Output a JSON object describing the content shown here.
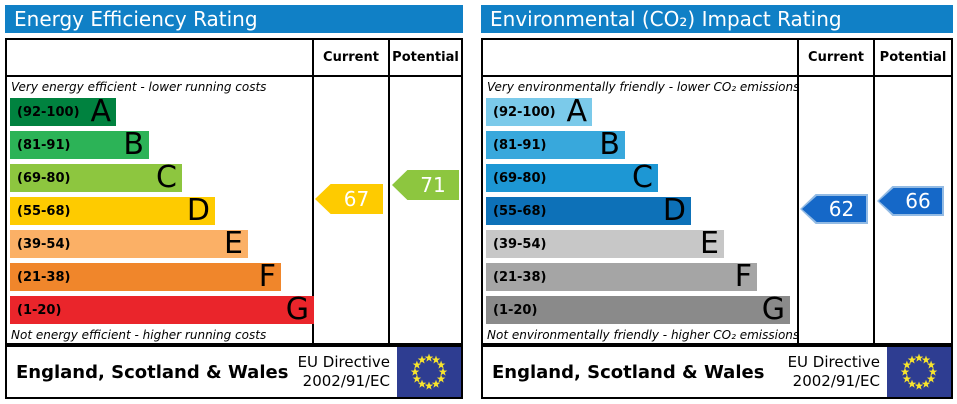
{
  "colors": {
    "header_bar": "#1080c6",
    "flag_background": "#2e3d91",
    "flag_stars": "#f8e42c",
    "arrow_text": "#ffffff"
  },
  "panels": [
    {
      "title": "Energy Efficiency Rating",
      "columns": {
        "current": "Current",
        "potential": "Potential"
      },
      "top_caption": "Very energy efficient - lower running costs",
      "bottom_caption": "Not energy efficient - higher running costs",
      "bands": [
        {
          "letter": "A",
          "range": "(92-100)",
          "min": 92,
          "max": 100,
          "color": "#00823f"
        },
        {
          "letter": "B",
          "range": "(81-91)",
          "min": 81,
          "max": 91,
          "color": "#2cb357"
        },
        {
          "letter": "C",
          "range": "(69-80)",
          "min": 69,
          "max": 80,
          "color": "#8dc63f"
        },
        {
          "letter": "D",
          "range": "(55-68)",
          "min": 55,
          "max": 68,
          "color": "#fecb00"
        },
        {
          "letter": "E",
          "range": "(39-54)",
          "min": 39,
          "max": 54,
          "color": "#fbb066"
        },
        {
          "letter": "F",
          "range": "(21-38)",
          "min": 21,
          "max": 38,
          "color": "#f0862b"
        },
        {
          "letter": "G",
          "range": "(1-20)",
          "min": 1,
          "max": 20,
          "color": "#ea252b"
        }
      ],
      "current": {
        "value": 67,
        "color": "#fecb00",
        "rim": "#fecb00"
      },
      "potential": {
        "value": 71,
        "color": "#8dc63f",
        "rim": "#8dc63f"
      },
      "footer": {
        "region": "England, Scotland & Wales",
        "directive_line1": "EU Directive",
        "directive_line2": "2002/91/EC"
      }
    },
    {
      "title": "Environmental (CO₂) Impact Rating",
      "columns": {
        "current": "Current",
        "potential": "Potential"
      },
      "top_caption": "Very environmentally friendly - lower CO₂ emissions",
      "bottom_caption": "Not environmentally friendly - higher CO₂ emissions",
      "bands": [
        {
          "letter": "A",
          "range": "(92-100)",
          "min": 92,
          "max": 100,
          "color": "#7bcaea"
        },
        {
          "letter": "B",
          "range": "(81-91)",
          "min": 81,
          "max": 91,
          "color": "#38a8dc"
        },
        {
          "letter": "C",
          "range": "(69-80)",
          "min": 69,
          "max": 80,
          "color": "#1d97d4"
        },
        {
          "letter": "D",
          "range": "(55-68)",
          "min": 55,
          "max": 68,
          "color": "#0d71b8"
        },
        {
          "letter": "E",
          "range": "(39-54)",
          "min": 39,
          "max": 54,
          "color": "#c7c7c7"
        },
        {
          "letter": "F",
          "range": "(21-38)",
          "min": 21,
          "max": 38,
          "color": "#a5a5a5"
        },
        {
          "letter": "G",
          "range": "(1-20)",
          "min": 1,
          "max": 20,
          "color": "#8a8a8a"
        }
      ],
      "current": {
        "value": 62,
        "color": "#1568c8",
        "rim": "#93bbe4"
      },
      "potential": {
        "value": 66,
        "color": "#1568c8",
        "rim": "#93bbe4"
      },
      "footer": {
        "region": "England, Scotland & Wales",
        "directive_line1": "EU Directive",
        "directive_line2": "2002/91/EC"
      }
    }
  ],
  "chart_data": [
    {
      "type": "bar",
      "title": "Energy Efficiency Rating",
      "categories": [
        "A (92-100)",
        "B (81-91)",
        "C (69-80)",
        "D (55-68)",
        "E (39-54)",
        "F (21-38)",
        "G (1-20)"
      ],
      "series": [
        {
          "name": "Current",
          "values": [
            67
          ]
        },
        {
          "name": "Potential",
          "values": [
            71
          ]
        }
      ],
      "ylim": [
        1,
        100
      ],
      "annotations": "Current 67 falls in band D; Potential 71 falls in band C"
    },
    {
      "type": "bar",
      "title": "Environmental (CO₂) Impact Rating",
      "categories": [
        "A (92-100)",
        "B (81-91)",
        "C (69-80)",
        "D (55-68)",
        "E (39-54)",
        "F (21-38)",
        "G (1-20)"
      ],
      "series": [
        {
          "name": "Current",
          "values": [
            62
          ]
        },
        {
          "name": "Potential",
          "values": [
            66
          ]
        }
      ],
      "ylim": [
        1,
        100
      ],
      "annotations": "Current 62 falls in band D; Potential 66 falls in band D"
    }
  ]
}
